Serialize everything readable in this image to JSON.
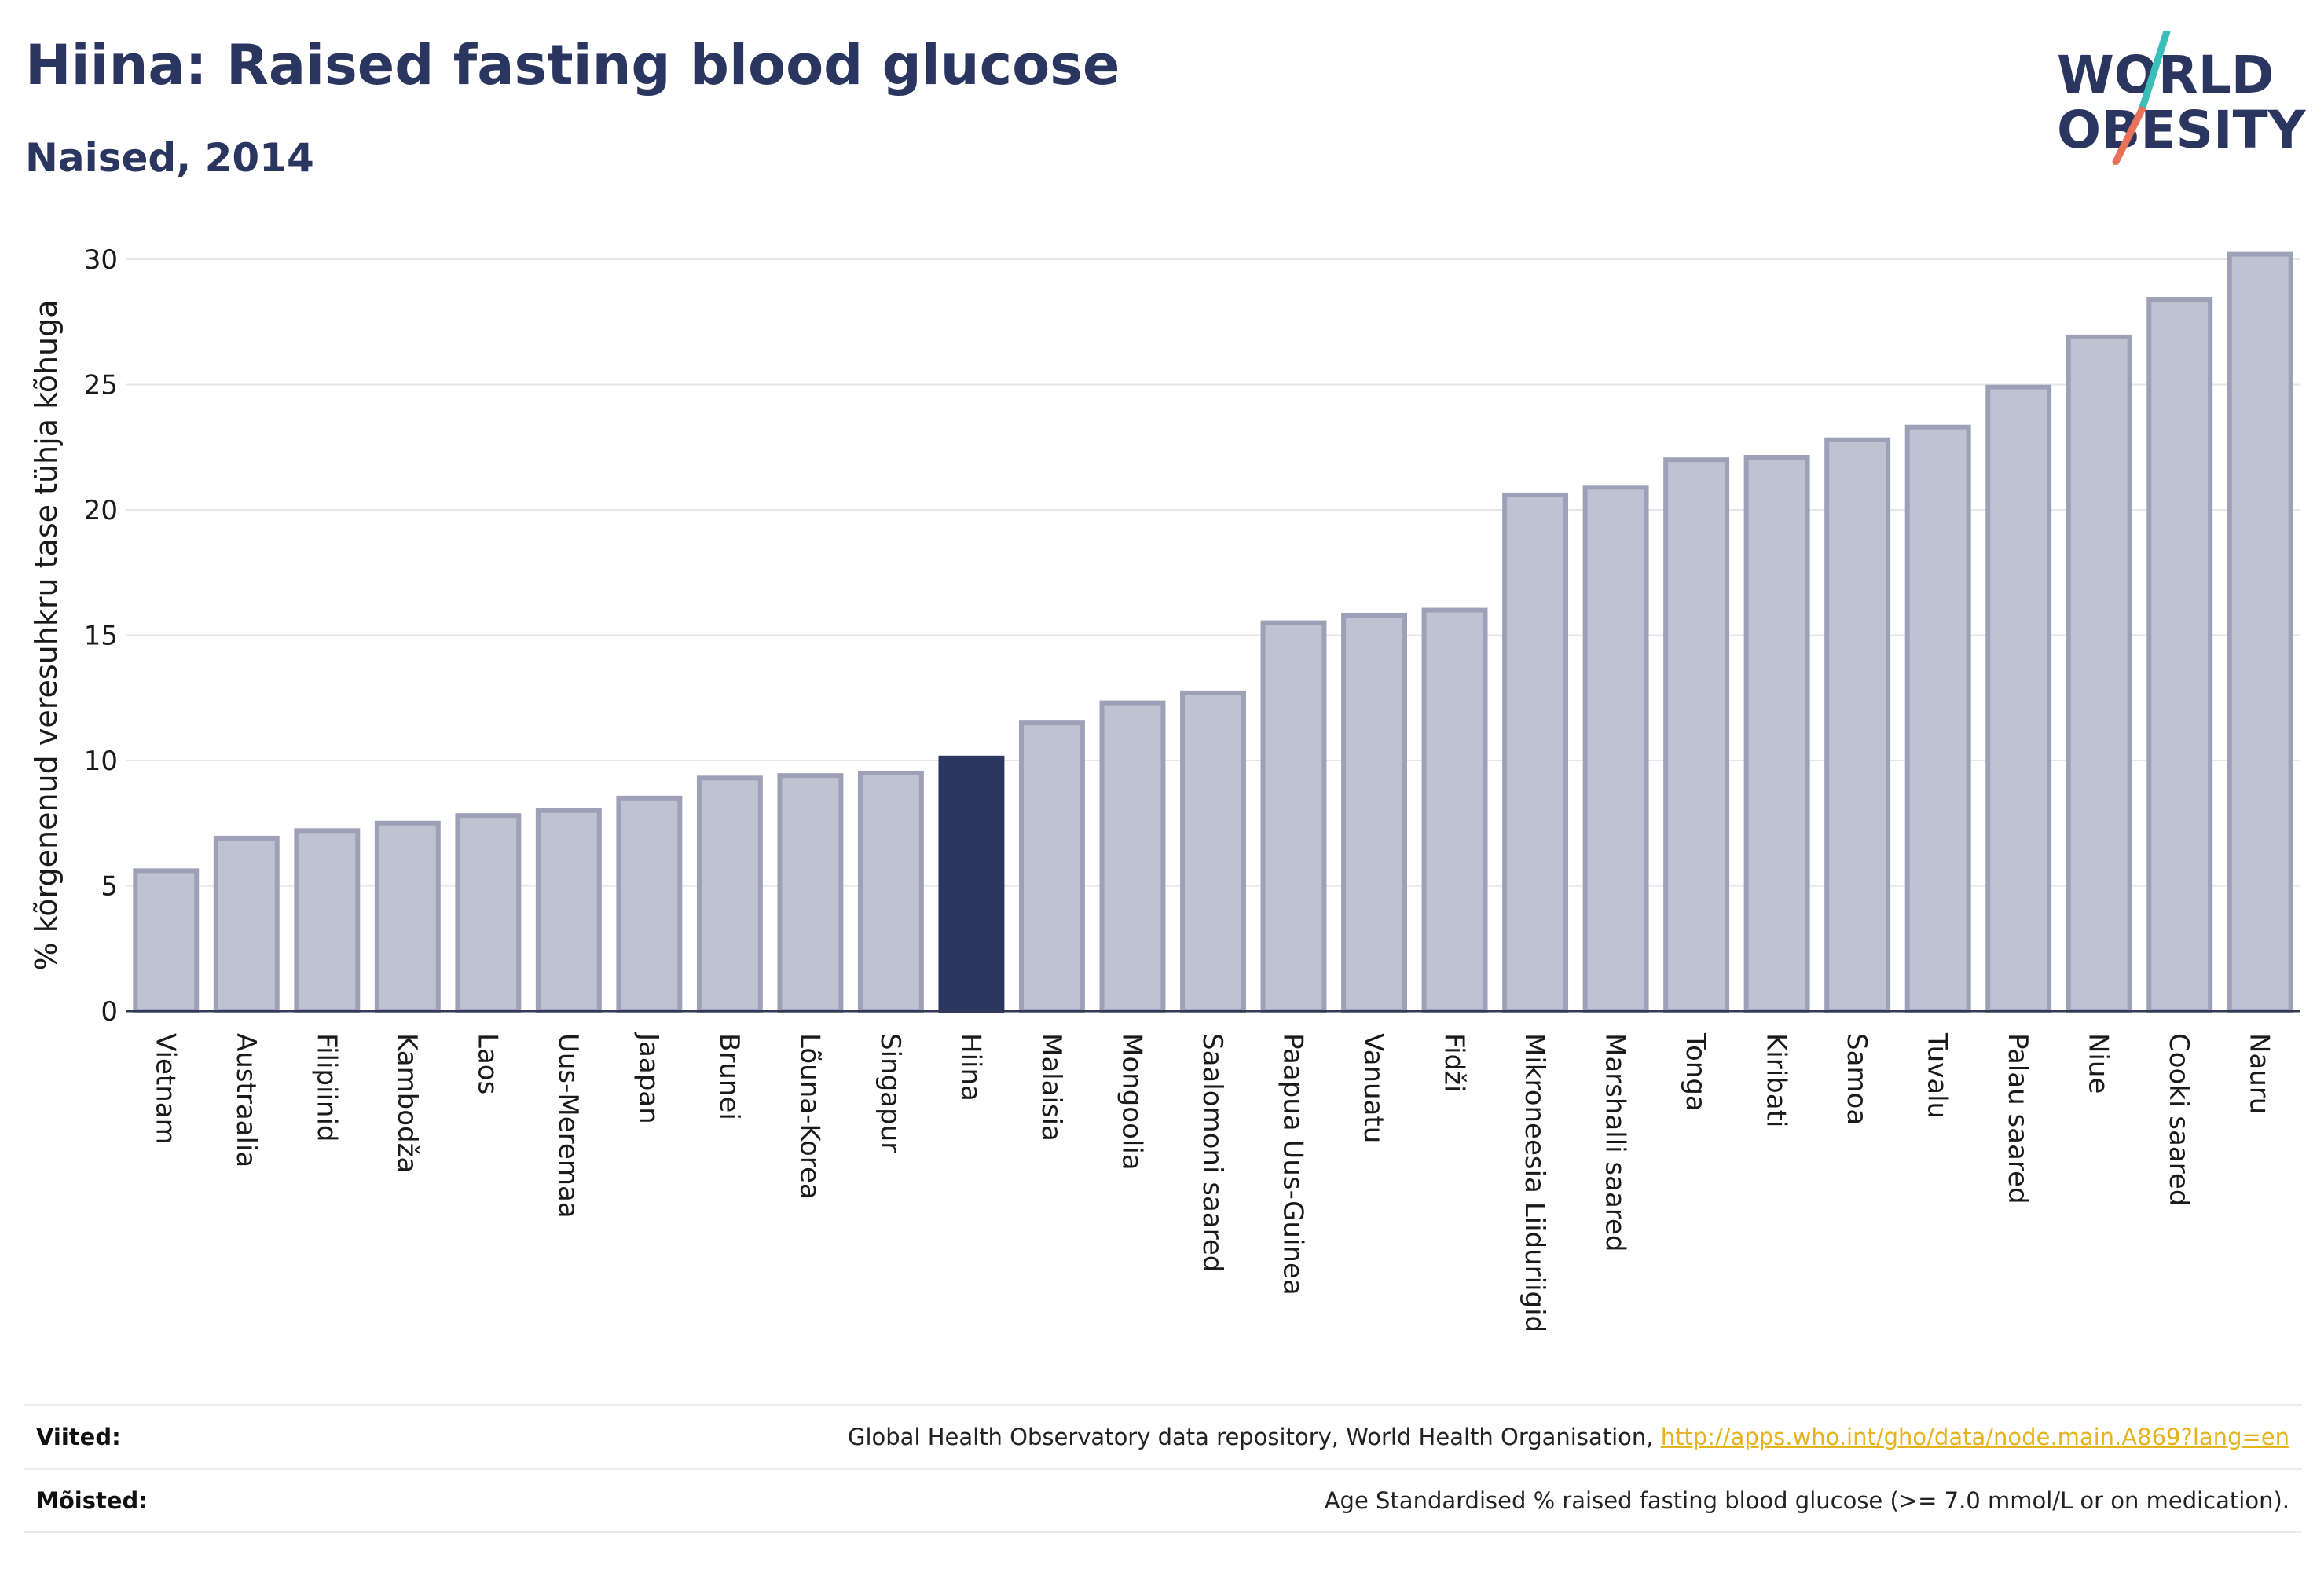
{
  "header": {
    "title": "Hiina: Raised fasting blood glucose",
    "subtitle": "Naised, 2014"
  },
  "logo": {
    "line1": "WORLD",
    "line2": "OBESITY",
    "colors": {
      "text": "#2b3660",
      "slash_top": "#3bbdb8",
      "slash_bottom": "#e8735a"
    }
  },
  "colors": {
    "bar_default": "#bfc2d0",
    "bar_default_stroke": "#9ca1b7",
    "bar_highlight": "#2b3660",
    "axis_text": "#1a1a1a",
    "grid": "#e6e6ea"
  },
  "chart_data": {
    "type": "bar",
    "ylabel": "% kõrgenenud veresuhkru tase tühja kõhuga",
    "ylim": [
      0,
      30
    ],
    "yticks": [
      0,
      5,
      10,
      15,
      20,
      25,
      30
    ],
    "grid": true,
    "highlight": "Hiina",
    "categories": [
      "Vietnam",
      "Austraalia",
      "Filipiinid",
      "Kambodža",
      "Laos",
      "Uus-Meremaa",
      "Jaapan",
      "Brunei",
      "Lõuna-Korea",
      "Singapur",
      "Hiina",
      "Malaisia",
      "Mongoolia",
      "Saalomoni saared",
      "Paapua Uus-Guinea",
      "Vanuatu",
      "Fidži",
      "Mikroneesia Liiduriigid",
      "Marshalli saared",
      "Tonga",
      "Kiribati",
      "Samoa",
      "Tuvalu",
      "Palau saared",
      "Niue",
      "Cooki saared",
      "Nauru"
    ],
    "values": [
      5.6,
      6.9,
      7.2,
      7.5,
      7.8,
      8.0,
      8.5,
      9.3,
      9.4,
      9.5,
      10.1,
      11.5,
      12.3,
      12.7,
      15.5,
      15.8,
      16.0,
      20.6,
      20.9,
      22.0,
      22.1,
      22.8,
      23.3,
      24.9,
      26.9,
      28.4,
      30.2
    ]
  },
  "footer": {
    "sources_label": "Viited:",
    "sources_text": "Global Health Observatory data repository, World Health Organisation, ",
    "sources_link": "http://apps.who.int/gho/data/node.main.A869?lang=en",
    "definitions_label": "Mõisted:",
    "definitions_text": "Age Standardised % raised fasting blood glucose (>= 7.0 mmol/L or on medication)."
  }
}
